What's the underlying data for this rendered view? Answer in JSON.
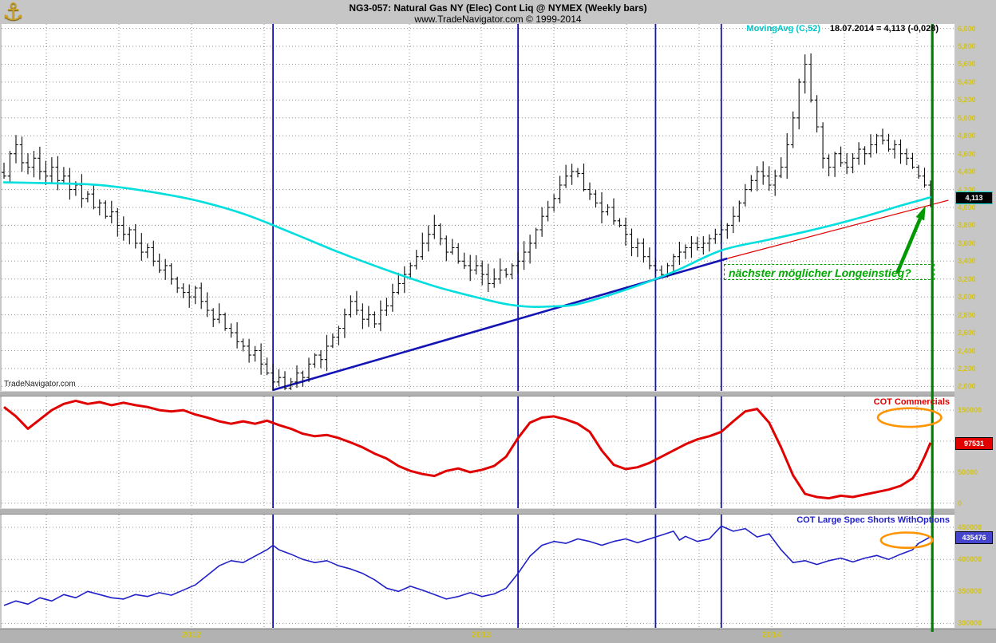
{
  "header": {
    "title": "NG3-057:  Natural Gas NY (Elec) Cont Liq @ NYMEX  (Weekly bars)",
    "subtitle": "www.TradeNavigator.com © 1999-2014"
  },
  "ui": {
    "logo_glyph": "⚓",
    "watermark": "TradeNavigator.com"
  },
  "x_axis_years": [
    "2012",
    "2013",
    "2014"
  ],
  "chart_data": [
    {
      "type": "bar",
      "subtype": "ohlc-weekly",
      "title": "NG3-057: Natural Gas NY (Elec) Cont Liq @ NYMEX (Weekly bars)",
      "ylim": [
        1950,
        6050
      ],
      "y_tick_labels": [
        "6,000",
        "5,800",
        "5,600",
        "5,400",
        "5,200",
        "5,000",
        "4,800",
        "4,600",
        "4,400",
        "4,200",
        "4,000",
        "3,800",
        "3,600",
        "3,400",
        "3,200",
        "3,000",
        "2,800",
        "2,600",
        "2,400",
        "2,200",
        "2,000"
      ],
      "closes": [
        4350,
        4600,
        4700,
        4500,
        4450,
        4550,
        4400,
        4350,
        4450,
        4300,
        4350,
        4200,
        4250,
        4100,
        4150,
        4000,
        4050,
        3900,
        3950,
        3800,
        3700,
        3750,
        3600,
        3500,
        3550,
        3400,
        3300,
        3350,
        3200,
        3100,
        3050,
        3000,
        3100,
        2950,
        2850,
        2750,
        2800,
        2650,
        2600,
        2500,
        2450,
        2350,
        2400,
        2250,
        2150,
        2050,
        2100,
        1980,
        2050,
        2150,
        2100,
        2250,
        2350,
        2300,
        2450,
        2550,
        2650,
        2800,
        2950,
        2850,
        2750,
        2800,
        2700,
        2850,
        2900,
        3050,
        3150,
        3250,
        3350,
        3450,
        3600,
        3700,
        3800,
        3650,
        3500,
        3550,
        3400,
        3350,
        3300,
        3350,
        3250,
        3150,
        3200,
        3300,
        3250,
        3350,
        3400,
        3500,
        3600,
        3750,
        3900,
        4000,
        4100,
        4250,
        4350,
        4400,
        4380,
        4200,
        4150,
        4050,
        3950,
        4000,
        3850,
        3800,
        3700,
        3550,
        3600,
        3450,
        3350,
        3300,
        3250,
        3350,
        3450,
        3500,
        3550,
        3600,
        3550,
        3600,
        3650,
        3700,
        3750,
        3800,
        3900,
        4050,
        4200,
        4300,
        4400,
        4350,
        4250,
        4350,
        4450,
        4700,
        5000,
        5400,
        5600,
        5200,
        4900,
        4550,
        4450,
        4600,
        4500,
        4450,
        4550,
        4650,
        4600,
        4700,
        4800,
        4750,
        4650,
        4700,
        4600,
        4550,
        4450,
        4350,
        4250,
        4113
      ],
      "last_close_label": "4,113",
      "moving_avg": {
        "name": "MovingAvg (C,52)",
        "period": 52,
        "last_value": 4113,
        "last_value_label": "18.07.2014 = 4,113 (-0,028)",
        "color": "#00dede",
        "keypoints": [
          [
            0,
            4280
          ],
          [
            8,
            4270
          ],
          [
            16,
            4250
          ],
          [
            24,
            4180
          ],
          [
            32,
            4080
          ],
          [
            40,
            3930
          ],
          [
            48,
            3720
          ],
          [
            56,
            3500
          ],
          [
            64,
            3300
          ],
          [
            72,
            3120
          ],
          [
            80,
            2980
          ],
          [
            84,
            2920
          ],
          [
            88,
            2890
          ],
          [
            92,
            2895
          ],
          [
            96,
            2920
          ],
          [
            104,
            3080
          ],
          [
            112,
            3280
          ],
          [
            120,
            3520
          ],
          [
            128,
            3640
          ],
          [
            136,
            3760
          ],
          [
            144,
            3900
          ],
          [
            150,
            4020
          ],
          [
            155,
            4113
          ]
        ]
      },
      "trendlines": [
        {
          "name": "long-uptrend-from-2012-low",
          "color": "#1414b4",
          "width": 2.6,
          "from_week": 45,
          "from_value": 1960,
          "to_week": 121,
          "to_value": 3430
        },
        {
          "name": "steeper-uptrend-2014",
          "color": "#e00000",
          "width": 1.2,
          "from_week": 121,
          "from_value": 3430,
          "to_week": 158,
          "to_value": 4080
        }
      ],
      "event_lines": {
        "blue_color": "#1414b4",
        "blue_weeks": [
          45,
          86,
          109,
          120
        ],
        "current_color": "#008000",
        "current_week": 155.3
      },
      "annotations": [
        {
          "type": "text-box",
          "text": "nächster möglicher Longeinstieg?",
          "color": "#00aa00"
        },
        {
          "type": "arrow",
          "color": "#009900",
          "from_week": 149.5,
          "from_value": 3280,
          "to_week": 153.8,
          "to_value": 3960
        }
      ]
    },
    {
      "type": "line",
      "title": "COT Commercials",
      "color": "#e00000",
      "ylim": [
        -8000,
        172000
      ],
      "y_ticks": [
        {
          "v": 150000,
          "label": "150000"
        },
        {
          "v": 100000,
          "label": "100000"
        },
        {
          "v": 50000,
          "label": "50000"
        },
        {
          "v": 0,
          "label": "0"
        }
      ],
      "last_value": 97531,
      "last_value_label": "97531",
      "points": [
        [
          0,
          155000
        ],
        [
          2,
          140000
        ],
        [
          4,
          120000
        ],
        [
          6,
          135000
        ],
        [
          8,
          150000
        ],
        [
          10,
          160000
        ],
        [
          12,
          165000
        ],
        [
          14,
          160000
        ],
        [
          16,
          163000
        ],
        [
          18,
          158000
        ],
        [
          20,
          162000
        ],
        [
          22,
          158000
        ],
        [
          24,
          155000
        ],
        [
          26,
          150000
        ],
        [
          28,
          148000
        ],
        [
          30,
          150000
        ],
        [
          32,
          143000
        ],
        [
          34,
          138000
        ],
        [
          36,
          132000
        ],
        [
          38,
          128000
        ],
        [
          40,
          132000
        ],
        [
          42,
          128000
        ],
        [
          44,
          133000
        ],
        [
          46,
          126000
        ],
        [
          48,
          120000
        ],
        [
          50,
          112000
        ],
        [
          52,
          108000
        ],
        [
          54,
          110000
        ],
        [
          56,
          105000
        ],
        [
          58,
          98000
        ],
        [
          60,
          90000
        ],
        [
          62,
          80000
        ],
        [
          64,
          72000
        ],
        [
          66,
          60000
        ],
        [
          68,
          52000
        ],
        [
          70,
          47000
        ],
        [
          72,
          44000
        ],
        [
          74,
          52000
        ],
        [
          76,
          56000
        ],
        [
          78,
          50000
        ],
        [
          80,
          54000
        ],
        [
          82,
          60000
        ],
        [
          84,
          75000
        ],
        [
          86,
          105000
        ],
        [
          88,
          130000
        ],
        [
          90,
          138000
        ],
        [
          92,
          140000
        ],
        [
          94,
          135000
        ],
        [
          96,
          128000
        ],
        [
          98,
          115000
        ],
        [
          100,
          85000
        ],
        [
          102,
          62000
        ],
        [
          104,
          55000
        ],
        [
          106,
          58000
        ],
        [
          108,
          65000
        ],
        [
          110,
          75000
        ],
        [
          112,
          85000
        ],
        [
          114,
          95000
        ],
        [
          116,
          103000
        ],
        [
          118,
          108000
        ],
        [
          120,
          115000
        ],
        [
          122,
          132000
        ],
        [
          124,
          148000
        ],
        [
          126,
          152000
        ],
        [
          128,
          130000
        ],
        [
          130,
          90000
        ],
        [
          132,
          45000
        ],
        [
          134,
          15000
        ],
        [
          136,
          10000
        ],
        [
          138,
          8000
        ],
        [
          140,
          12000
        ],
        [
          142,
          10000
        ],
        [
          144,
          14000
        ],
        [
          146,
          18000
        ],
        [
          148,
          22000
        ],
        [
          150,
          28000
        ],
        [
          152,
          40000
        ],
        [
          153,
          55000
        ],
        [
          154,
          75000
        ],
        [
          155,
          97531
        ]
      ],
      "annotations": [
        {
          "type": "ellipse",
          "color": "#ff9300",
          "center_week": 151.5,
          "center_value": 138000,
          "rx_weeks": 5.3,
          "ry_value": 15000
        }
      ]
    },
    {
      "type": "line",
      "title": "COT Large Spec Shorts WithOptions",
      "color": "#2020c8",
      "ylim": [
        293000,
        470000
      ],
      "y_ticks": [
        {
          "v": 450000,
          "label": "450000"
        },
        {
          "v": 400000,
          "label": "400000"
        },
        {
          "v": 350000,
          "label": "350000"
        },
        {
          "v": 300000,
          "label": "300000"
        }
      ],
      "last_value": 435476,
      "last_value_label": "435476",
      "points": [
        [
          0,
          328000
        ],
        [
          2,
          335000
        ],
        [
          4,
          330000
        ],
        [
          6,
          340000
        ],
        [
          8,
          335000
        ],
        [
          10,
          345000
        ],
        [
          12,
          340000
        ],
        [
          14,
          350000
        ],
        [
          16,
          345000
        ],
        [
          18,
          340000
        ],
        [
          20,
          338000
        ],
        [
          22,
          345000
        ],
        [
          24,
          342000
        ],
        [
          26,
          348000
        ],
        [
          28,
          344000
        ],
        [
          30,
          352000
        ],
        [
          32,
          360000
        ],
        [
          34,
          375000
        ],
        [
          36,
          390000
        ],
        [
          38,
          398000
        ],
        [
          40,
          395000
        ],
        [
          42,
          405000
        ],
        [
          44,
          415000
        ],
        [
          45,
          422000
        ],
        [
          46,
          415000
        ],
        [
          48,
          408000
        ],
        [
          50,
          400000
        ],
        [
          52,
          395000
        ],
        [
          54,
          398000
        ],
        [
          56,
          390000
        ],
        [
          58,
          385000
        ],
        [
          60,
          378000
        ],
        [
          62,
          368000
        ],
        [
          64,
          355000
        ],
        [
          66,
          350000
        ],
        [
          68,
          358000
        ],
        [
          70,
          352000
        ],
        [
          72,
          345000
        ],
        [
          74,
          338000
        ],
        [
          76,
          342000
        ],
        [
          78,
          348000
        ],
        [
          80,
          342000
        ],
        [
          82,
          346000
        ],
        [
          84,
          355000
        ],
        [
          86,
          378000
        ],
        [
          88,
          405000
        ],
        [
          90,
          422000
        ],
        [
          92,
          428000
        ],
        [
          94,
          425000
        ],
        [
          96,
          432000
        ],
        [
          98,
          428000
        ],
        [
          100,
          422000
        ],
        [
          102,
          428000
        ],
        [
          104,
          432000
        ],
        [
          106,
          426000
        ],
        [
          108,
          432000
        ],
        [
          110,
          438000
        ],
        [
          112,
          444000
        ],
        [
          113,
          430000
        ],
        [
          114,
          436000
        ],
        [
          116,
          428000
        ],
        [
          118,
          432000
        ],
        [
          120,
          452000
        ],
        [
          122,
          444000
        ],
        [
          124,
          448000
        ],
        [
          126,
          435000
        ],
        [
          128,
          440000
        ],
        [
          130,
          415000
        ],
        [
          132,
          395000
        ],
        [
          134,
          398000
        ],
        [
          136,
          392000
        ],
        [
          138,
          398000
        ],
        [
          140,
          402000
        ],
        [
          142,
          396000
        ],
        [
          144,
          402000
        ],
        [
          146,
          406000
        ],
        [
          148,
          400000
        ],
        [
          150,
          408000
        ],
        [
          152,
          415000
        ],
        [
          153,
          425000
        ],
        [
          154,
          430000
        ],
        [
          155,
          435476
        ]
      ],
      "annotations": [
        {
          "type": "ellipse",
          "color": "#ff9300",
          "center_week": 151,
          "center_value": 430000,
          "rx_weeks": 4.3,
          "ry_value": 12000
        }
      ]
    }
  ]
}
